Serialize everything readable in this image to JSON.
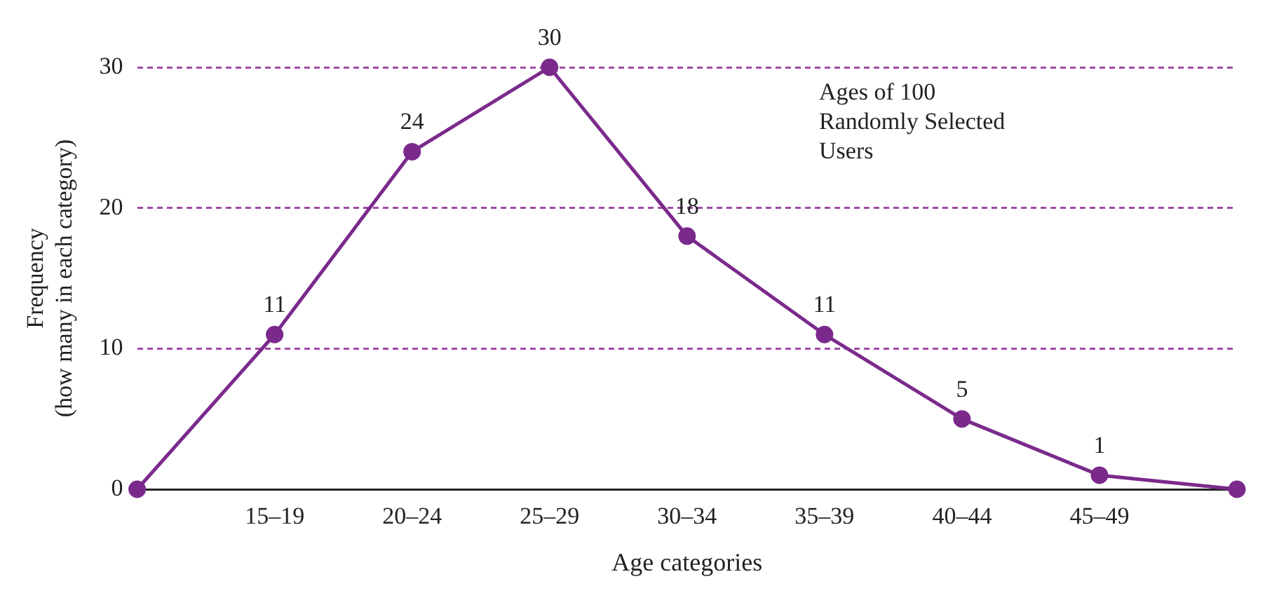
{
  "chart_data": {
    "type": "line",
    "annotations": [
      "Ages of 100 Randomly Selected Users"
    ],
    "xlabel": "Age categories",
    "ylabel": "Frequency\n(how many in each category)",
    "categories": [
      null,
      "15–19",
      "20–24",
      "25–29",
      "30–34",
      "35–39",
      "40–44",
      "45–49",
      null
    ],
    "series": [
      {
        "color": "#7b2a8c",
        "values": [
          0,
          11,
          24,
          30,
          18,
          11,
          5,
          1,
          0
        ],
        "value_labels": [
          null,
          "11",
          "24",
          "30",
          "18",
          "11",
          "5",
          "1",
          null
        ]
      }
    ],
    "ylim": [
      0,
      30
    ],
    "yticks": [
      0,
      10,
      20,
      30
    ],
    "grid": "y",
    "marker": "circle",
    "line_style": "solid",
    "legend": false
  }
}
